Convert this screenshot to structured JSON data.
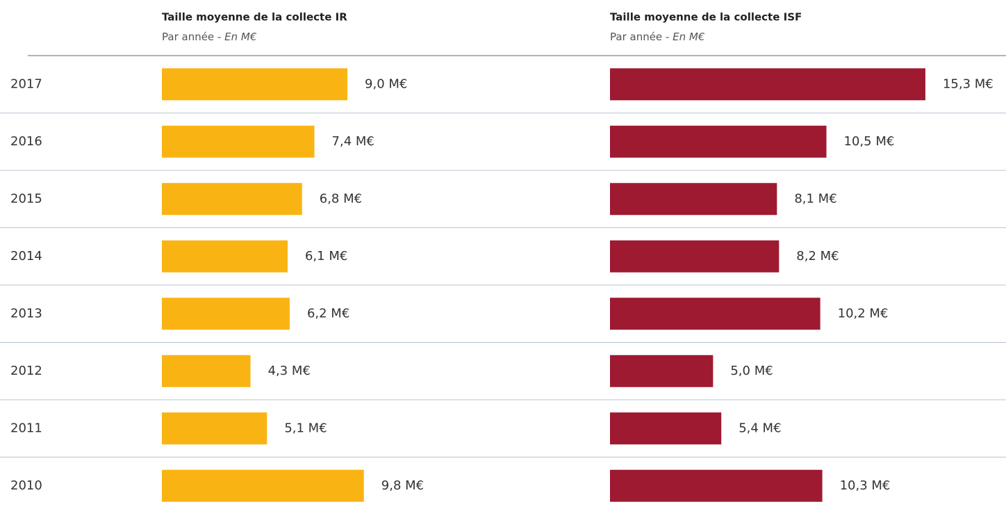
{
  "chart_data": {
    "type": "bar",
    "orientation": "horizontal",
    "categories": [
      "2017",
      "2016",
      "2015",
      "2014",
      "2013",
      "2012",
      "2011",
      "2010"
    ],
    "series": [
      {
        "name": "Taille moyenne de la collecte IR",
        "subtitle": "Par année - ",
        "subtitle_unit": "En M€",
        "color": "#f9b414",
        "values": [
          9.0,
          7.4,
          6.8,
          6.1,
          6.2,
          4.3,
          5.1,
          9.8
        ],
        "value_labels": [
          "9,0 M€",
          "7,4 M€",
          "6,8 M€",
          "6,1 M€",
          "6,2 M€",
          "4,3 M€",
          "5,1 M€",
          "9,8 M€"
        ]
      },
      {
        "name": "Taille moyenne de la collecte ISF",
        "subtitle": "Par année - ",
        "subtitle_unit": "En M€",
        "color": "#9e1a31",
        "values": [
          15.3,
          10.5,
          8.1,
          8.2,
          10.2,
          5.0,
          5.4,
          10.3
        ],
        "value_labels": [
          "15,3 M€",
          "10,5 M€",
          "8,1 M€",
          "8,2 M€",
          "10,2 M€",
          "5,0 M€",
          "5,4 M€",
          "10,3 M€"
        ]
      }
    ]
  }
}
